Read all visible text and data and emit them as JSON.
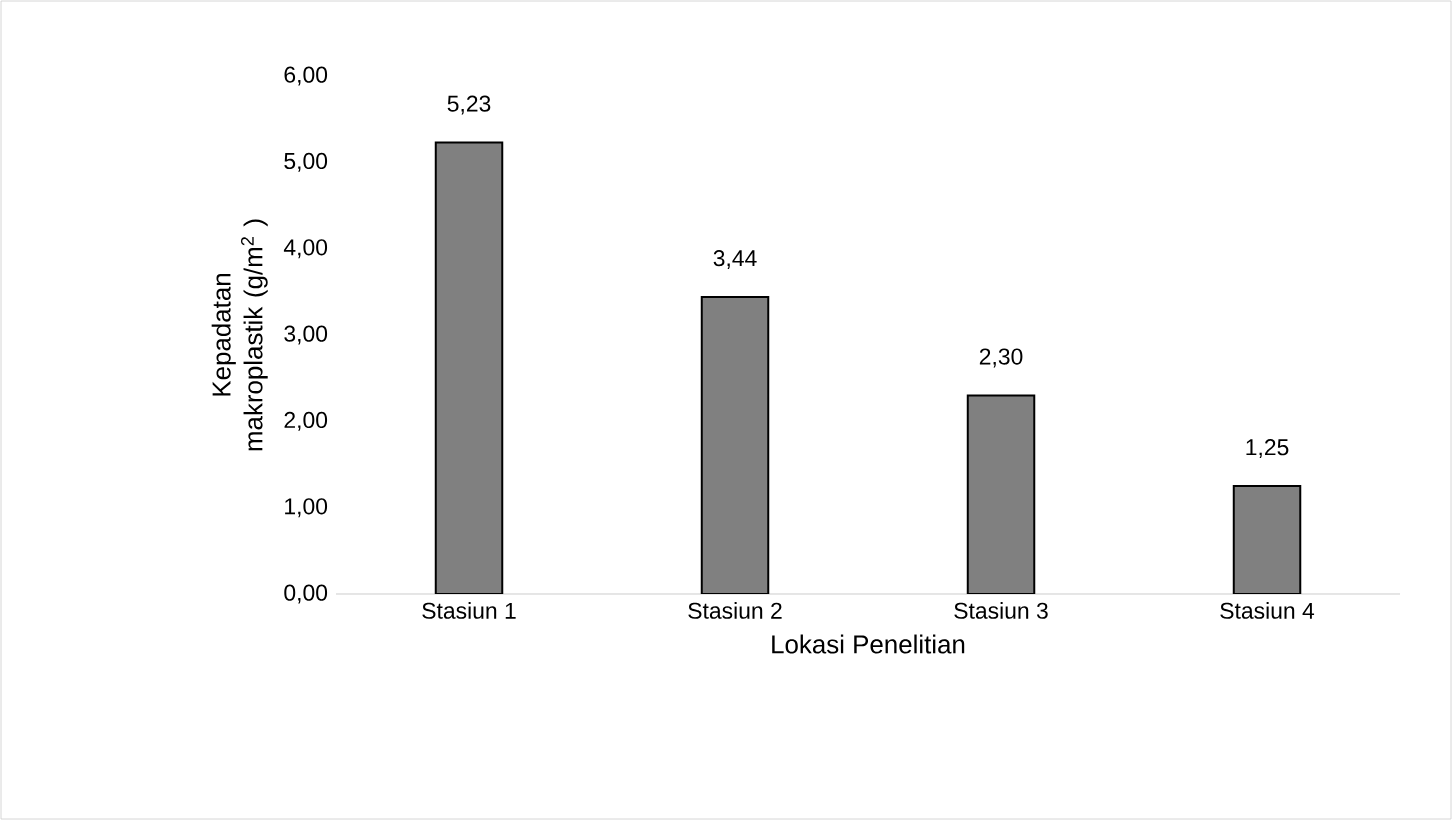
{
  "chart_data": {
    "type": "bar",
    "xlabel": "Lokasi Penelitian",
    "ylabel": "Kepadatan makroplastik (g/m$^{2}$ )",
    "categories": [
      "Stasiun 1",
      "Stasiun 2",
      "Stasiun 3",
      "Stasiun 4"
    ],
    "values": [
      5.23,
      3.44,
      2.3,
      1.25
    ],
    "value_labels": [
      "5,23",
      "3,44",
      "2,30",
      "1,25"
    ],
    "color": "#808080",
    "ylim": [
      0,
      6
    ],
    "yticks": [
      {
        "value": 0,
        "label": "0,00"
      },
      {
        "value": 1,
        "label": "1,00"
      },
      {
        "value": 2,
        "label": "2,00"
      },
      {
        "value": 3,
        "label": "3,00"
      },
      {
        "value": 4,
        "label": "4,00"
      },
      {
        "value": 5,
        "label": "5,00"
      },
      {
        "value": 6,
        "label": "6,00"
      }
    ],
    "grid": false
  }
}
